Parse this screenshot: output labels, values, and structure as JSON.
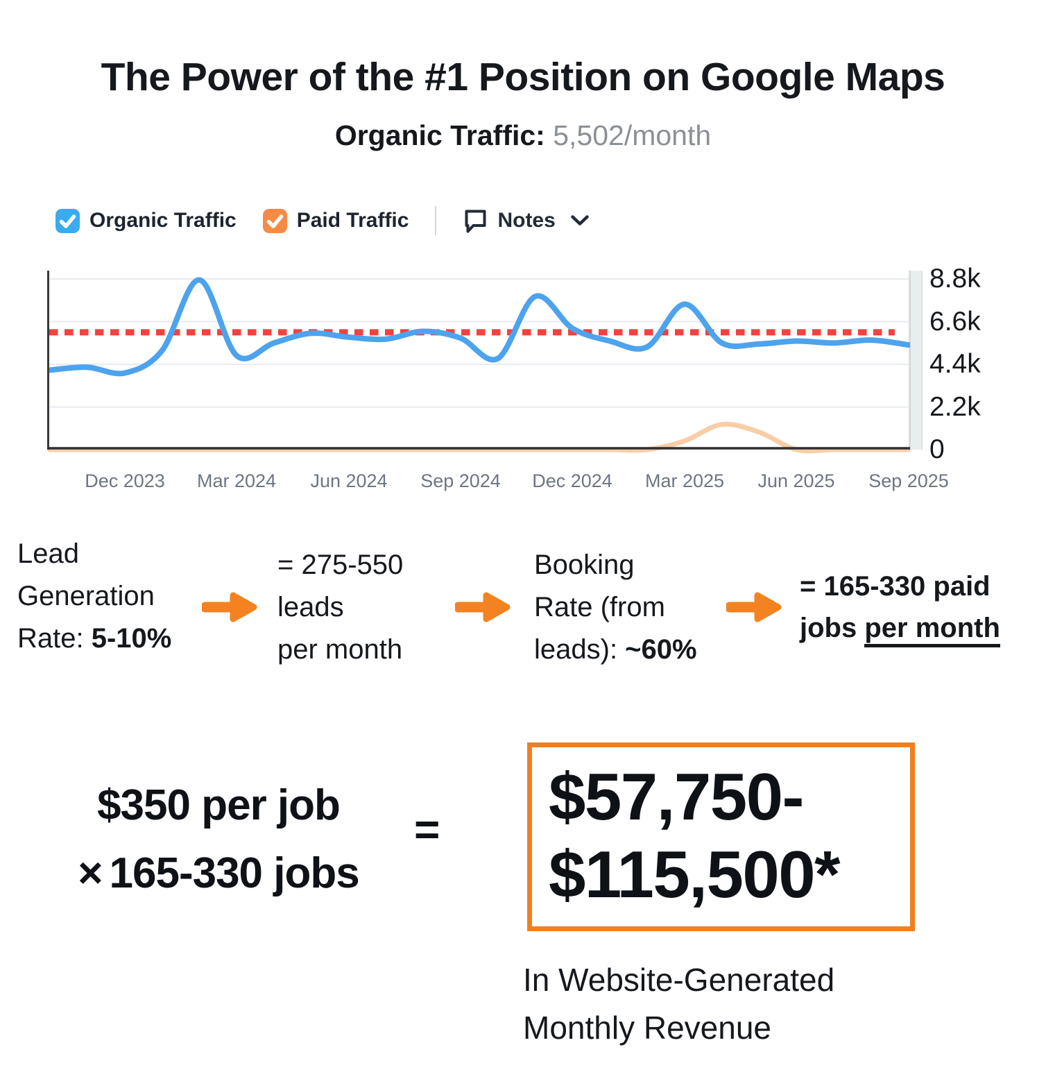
{
  "title": "The Power of the #1 Position on Google Maps",
  "subtitle": {
    "label": "Organic Traffic:",
    "value": "5,502/month"
  },
  "legend": {
    "organic": {
      "label": "Organic Traffic",
      "checked": true,
      "color": "#3aabee"
    },
    "paid": {
      "label": "Paid Traffic",
      "checked": true,
      "color": "#f78b45"
    },
    "notes_label": "Notes"
  },
  "chart_data": {
    "type": "line",
    "x": [
      "Oct 2023",
      "Nov 2023",
      "Dec 2023",
      "Jan 2024",
      "Feb 2024",
      "Mar 2024",
      "Apr 2024",
      "May 2024",
      "Jun 2024",
      "Jul 2024",
      "Aug 2024",
      "Sep 2024",
      "Oct 2024",
      "Nov 2024",
      "Dec 2024",
      "Jan 2025",
      "Feb 2025",
      "Mar 2025",
      "Apr 2025",
      "May 2025",
      "Jun 2025",
      "Jul 2025",
      "Aug 2025",
      "Sep 2025"
    ],
    "x_tick_labels": [
      "Dec 2023",
      "Mar 2024",
      "Jun 2024",
      "Sep 2024",
      "Dec 2024",
      "Mar 2025",
      "Jun 2025",
      "Sep 2025"
    ],
    "x_tick_indices": [
      2,
      5,
      8,
      11,
      14,
      17,
      20,
      23
    ],
    "y_ticks": [
      "8.8k",
      "6.6k",
      "4.4k",
      "2.2k",
      "0"
    ],
    "y_tick_values": [
      8800,
      6600,
      4400,
      2200,
      0
    ],
    "ylim": [
      0,
      9230
    ],
    "grid": true,
    "legend_position": "top",
    "series": [
      {
        "name": "Organic Traffic",
        "color": "#4da3ed",
        "values": [
          4100,
          4250,
          3950,
          5100,
          8750,
          4850,
          5500,
          6000,
          5800,
          5700,
          6100,
          5750,
          4700,
          7900,
          6250,
          5600,
          5300,
          7500,
          5500,
          5450,
          5600,
          5500,
          5650,
          5400
        ]
      },
      {
        "name": "Paid Traffic",
        "color": "#f9cda6",
        "values": [
          0,
          0,
          0,
          0,
          0,
          0,
          0,
          0,
          0,
          0,
          0,
          0,
          0,
          0,
          0,
          0,
          0,
          450,
          1300,
          900,
          0,
          0,
          0,
          0
        ]
      }
    ],
    "reference_line": {
      "value": 6050,
      "color": "#f2413e",
      "style": "dotted"
    }
  },
  "flow": {
    "step1": {
      "line1": "Lead",
      "line2": "Generation",
      "line3_prefix": "Rate: ",
      "line3_bold": "5-10%"
    },
    "step2": {
      "line1": "= 275-550",
      "line2": "leads",
      "line3": "per month"
    },
    "step3": {
      "line1": "Booking",
      "line2": "Rate (from",
      "line3_prefix": "leads): ",
      "line3_bold": "~60%"
    },
    "step4": {
      "line1": "= 165-330 paid",
      "line2_prefix": "jobs ",
      "line2_underlined": "per month"
    }
  },
  "equation": {
    "left_line1": "$350 per job",
    "times_symbol": "×",
    "left_line2": "165-330 jobs",
    "equals": "=",
    "result_line1": "$57,750-",
    "result_line2": "$115,500*",
    "caption_line1": "In Website-Generated",
    "caption_line2": "Monthly Revenue"
  },
  "colors": {
    "organic_line": "#4da3ed",
    "paid_line": "#f9cda6",
    "reference_line": "#f2413e",
    "arrow": "#f58220",
    "result_box_border": "#f0801f",
    "axis": "#3a3a3a",
    "grid": "#e8ebf1",
    "x_label_text": "#6d7584",
    "subtitle_value": "#8b9096"
  }
}
